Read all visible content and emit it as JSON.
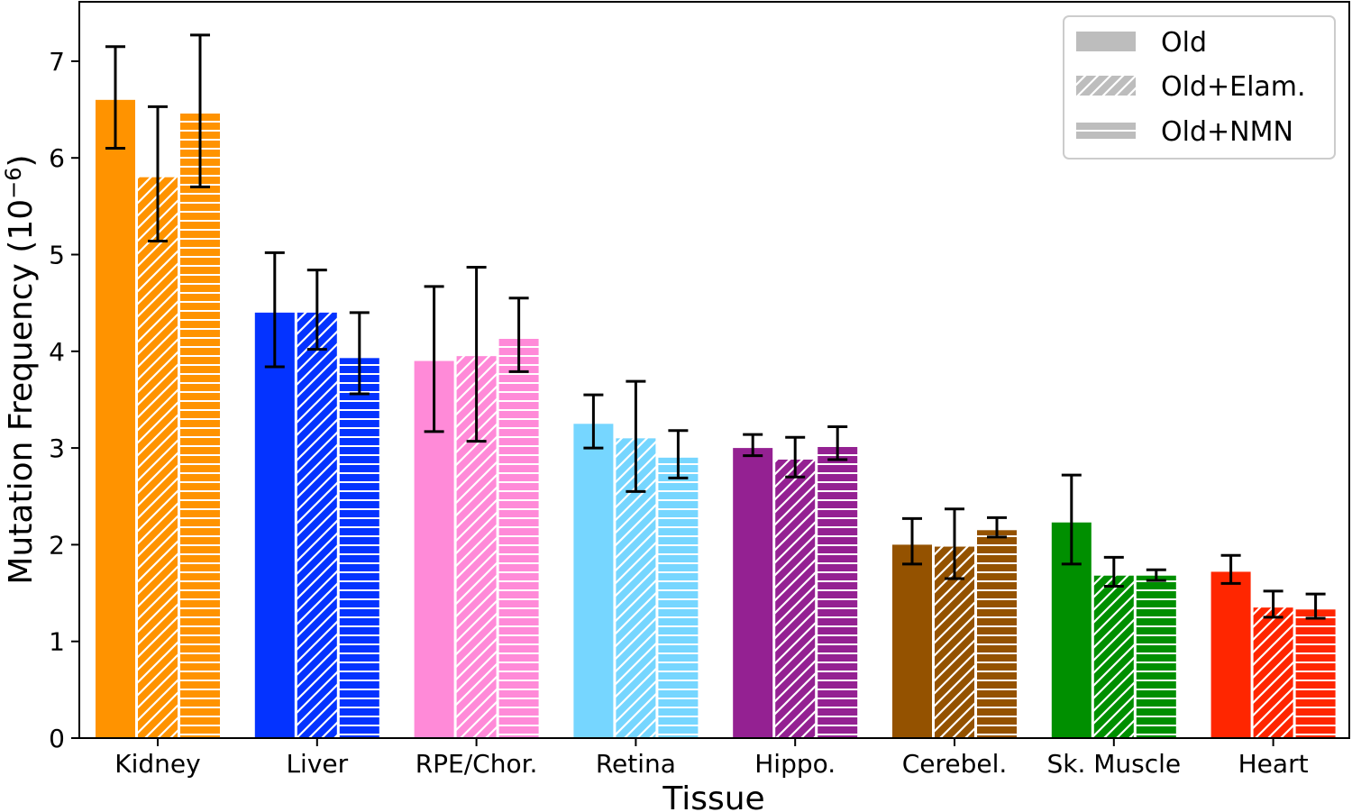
{
  "chart_data": {
    "type": "bar",
    "title": "",
    "xlabel": "Tissue",
    "ylabel": "Mutation Frequency (10",
    "ylabel_exponent": "−6",
    "ylabel_close": ")",
    "ylim": [
      0,
      7.6
    ],
    "yticks": [
      "0",
      "1",
      "2",
      "3",
      "4",
      "5",
      "6",
      "7"
    ],
    "categories": [
      "Kidney",
      "Liver",
      "RPE/Chor.",
      "Retina",
      "Hippo.",
      "Cerebel.",
      "Sk. Muscle",
      "Heart"
    ],
    "category_colors": [
      "#ff9300",
      "#0433ff",
      "#ff8ad8",
      "#76d6ff",
      "#942192",
      "#945200",
      "#008f00",
      "#ff2600"
    ],
    "legend_position": "top-right",
    "series": [
      {
        "name": "Old",
        "pattern": "solid",
        "values": [
          6.6,
          4.4,
          3.9,
          3.25,
          3.0,
          2.0,
          2.23,
          1.72
        ],
        "err_low": [
          6.1,
          3.84,
          3.17,
          3.0,
          2.92,
          1.8,
          1.8,
          1.6
        ],
        "err_high": [
          7.15,
          5.02,
          4.67,
          3.55,
          3.14,
          2.27,
          2.72,
          1.89
        ]
      },
      {
        "name": "Old+Elam.",
        "pattern": "hatch-diagonal",
        "values": [
          5.8,
          4.4,
          3.95,
          3.1,
          2.88,
          1.98,
          1.68,
          1.35
        ],
        "err_low": [
          5.14,
          4.02,
          3.07,
          2.55,
          2.7,
          1.65,
          1.57,
          1.25
        ],
        "err_high": [
          6.53,
          4.84,
          4.87,
          3.69,
          3.11,
          2.37,
          1.87,
          1.52
        ]
      },
      {
        "name": "Old+NMN",
        "pattern": "hatch-horizontal",
        "values": [
          6.46,
          3.93,
          4.14,
          2.9,
          3.02,
          2.15,
          1.68,
          1.33
        ],
        "err_low": [
          5.7,
          3.56,
          3.79,
          2.69,
          2.88,
          2.08,
          1.63,
          1.24
        ],
        "err_high": [
          7.27,
          4.4,
          4.55,
          3.18,
          3.22,
          2.28,
          1.74,
          1.49
        ]
      }
    ]
  }
}
